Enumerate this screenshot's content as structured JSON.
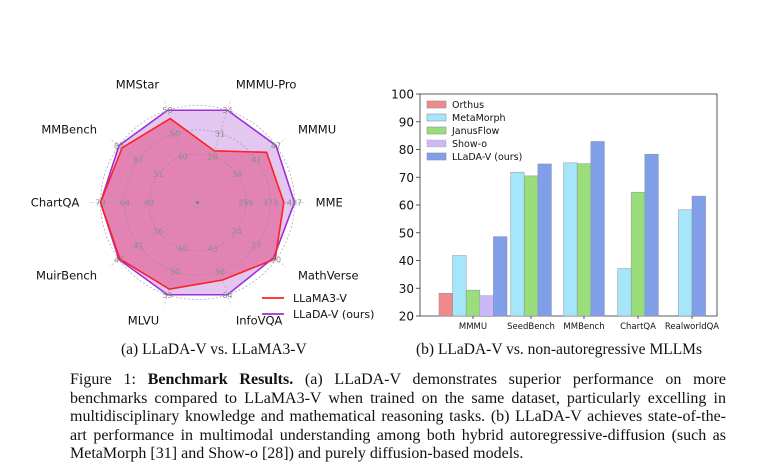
{
  "chart_data": [
    {
      "type": "radar",
      "title": "",
      "axes": [
        "MME",
        "MMMU",
        "MMMU-Pro",
        "MMStar",
        "MMBench",
        "ChartQA",
        "MuirBench",
        "MLVU",
        "InfoVQA",
        "MathVerse"
      ],
      "ring_fractions": [
        0.5,
        0.75,
        1.0
      ],
      "tick_labels": [
        [
          "256",
          "373",
          "487"
        ],
        [
          "34",
          "41",
          "47"
        ],
        [
          "28",
          "31",
          "34"
        ],
        [
          "40",
          "50",
          "58"
        ],
        [
          "51",
          "67",
          "82"
        ],
        [
          "49",
          "64",
          "79"
        ],
        [
          "36",
          "41",
          "47"
        ],
        [
          "40",
          "50",
          "59"
        ],
        [
          "43",
          "56",
          "64"
        ],
        [
          "24",
          "27",
          "30"
        ]
      ],
      "series": [
        {
          "name": "LLaMA3-V",
          "color": "#ff2020",
          "fill": "#e377a8",
          "values_fraction": [
            0.89,
            0.88,
            0.56,
            0.91,
            0.96,
            1.0,
            0.99,
            0.94,
            0.84,
            0.99
          ]
        },
        {
          "name": "LLaDA-V (ours)",
          "color": "#9b30d9",
          "fill": "#d9b4ec",
          "values_fraction": [
            1.0,
            1.0,
            1.0,
            1.0,
            1.0,
            1.0,
            1.0,
            1.0,
            1.0,
            0.97
          ]
        }
      ],
      "legend": "bottom-right"
    },
    {
      "type": "bar",
      "title": "",
      "xlabel": "",
      "ylabel": "",
      "ylim": [
        20,
        100
      ],
      "yticks": [
        20,
        30,
        40,
        50,
        60,
        70,
        80,
        90,
        100
      ],
      "categories": [
        "MMMU",
        "SeedBench",
        "MMBench",
        "ChartQA",
        "RealworldQA"
      ],
      "series": [
        {
          "name": "Orthus",
          "color": "#f08a8a",
          "values": [
            28.2,
            null,
            null,
            null,
            null
          ]
        },
        {
          "name": "MetaMorph",
          "color": "#a6e6fb",
          "values": [
            41.8,
            71.8,
            75.2,
            37.1,
            58.3
          ]
        },
        {
          "name": "JanusFlow",
          "color": "#99de7a",
          "values": [
            29.3,
            70.5,
            74.9,
            64.6,
            null
          ]
        },
        {
          "name": "Show-o",
          "color": "#cdb8f7",
          "values": [
            27.4,
            null,
            null,
            null,
            null
          ]
        },
        {
          "name": "LLaDA-V (ours)",
          "color": "#809fe8",
          "values": [
            48.6,
            74.8,
            82.9,
            78.3,
            63.2
          ]
        }
      ],
      "legend": "top-left",
      "grid": false
    }
  ],
  "subcaptions": {
    "a": "(a) LLaDA-V vs. LLaMA3-V",
    "b": "(b) LLaDA-V vs. non-autoregressive MLLMs"
  },
  "caption": {
    "label": "Figure 1: ",
    "bold": "Benchmark Results.",
    "text": " (a) LLaDA-V demonstrates superior performance on more benchmarks compared to LLaMA3-V when trained on the same dataset, particularly excelling in multidisciplinary knowledge and mathematical reasoning tasks. (b) LLaDA-V achieves state-of-the-art performance in multimodal understanding among both hybrid autoregressive-diffusion (such as MetaMorph [31] and Show-o [28]) and purely diffusion-based models."
  }
}
